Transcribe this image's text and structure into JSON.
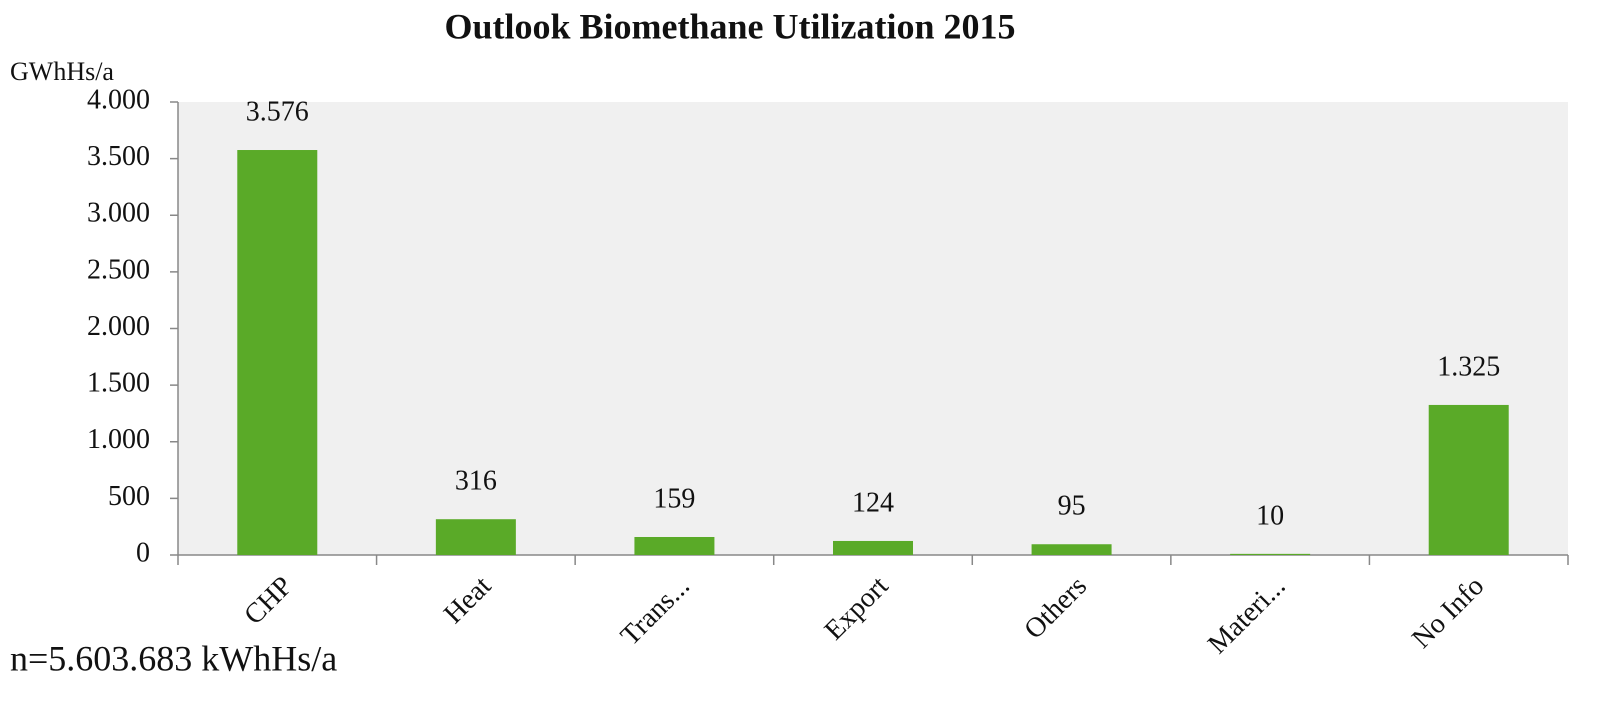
{
  "chart_data": {
    "type": "bar",
    "title": "Outlook Biomethane Utilization 2015",
    "y_label": "GWhHs/a",
    "footnote": "n=5.603.683 kWhHs/a",
    "categories": [
      "CHP",
      "Heat",
      "Trans...",
      "Export",
      "Others",
      "Materi...",
      "No Info"
    ],
    "values": [
      3576,
      316,
      159,
      124,
      95,
      10,
      1325
    ],
    "value_labels": [
      "3.576",
      "316",
      "159",
      "124",
      "95",
      "10",
      "1.325"
    ],
    "color": "#5aaa28",
    "ylim": [
      0,
      4000
    ],
    "yticks": [
      0,
      500,
      {
        "value": 1000,
        "label": "1.000"
      },
      {
        "value": 1500,
        "label": "1.500"
      },
      {
        "value": 2000,
        "label": "2.000"
      },
      {
        "value": 2500,
        "label": "2.500"
      },
      {
        "value": 3000,
        "label": "3.000"
      },
      {
        "value": 3500,
        "label": "3.500"
      },
      {
        "value": 4000,
        "label": "4.000"
      }
    ],
    "grid": false
  }
}
